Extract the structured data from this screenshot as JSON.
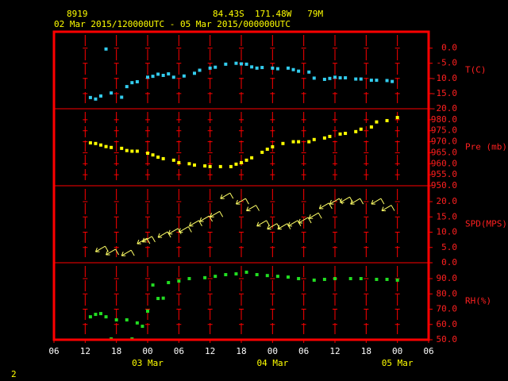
{
  "header": {
    "station": "8919",
    "location": "84.43S  171.48W   79M",
    "period": "02 Mar 2015/120000UTC - 05 Mar 2015/000000UTC"
  },
  "page_number": "2",
  "time_axis": {
    "xlim": [
      "2015-03-02T06",
      "2015-03-05T06"
    ],
    "xticks": [
      {
        "value": "2015-03-02T06",
        "label": "06"
      },
      {
        "value": "2015-03-02T12",
        "label": "12"
      },
      {
        "value": "2015-03-02T18",
        "label": "18"
      },
      {
        "value": "2015-03-03T00",
        "label": "00"
      },
      {
        "value": "2015-03-03T06",
        "label": "06"
      },
      {
        "value": "2015-03-03T12",
        "label": "12"
      },
      {
        "value": "2015-03-03T18",
        "label": "18"
      },
      {
        "value": "2015-03-04T00",
        "label": "00"
      },
      {
        "value": "2015-03-04T06",
        "label": "06"
      },
      {
        "value": "2015-03-04T12",
        "label": "12"
      },
      {
        "value": "2015-03-04T18",
        "label": "18"
      },
      {
        "value": "2015-03-05T00",
        "label": "00"
      },
      {
        "value": "2015-03-05T06",
        "label": "06"
      }
    ],
    "date_labels": [
      {
        "value": "2015-03-03T00",
        "label": "03 Mar"
      },
      {
        "value": "2015-03-04T00",
        "label": "04 Mar"
      },
      {
        "value": "2015-03-05T00",
        "label": "05 Mar"
      }
    ]
  },
  "chart_data": [
    {
      "type": "scatter",
      "ylabel": "T(C)",
      "color": "#33ccee",
      "ylim": [
        -20,
        5.4
      ],
      "yticks": [
        {
          "value": 0,
          "label": "0.0"
        },
        {
          "value": -5,
          "label": "-5.0"
        },
        {
          "value": -10,
          "label": "-10.0"
        },
        {
          "value": -15,
          "label": "-15.0"
        },
        {
          "value": -20,
          "label": "-20.0"
        }
      ],
      "x": [
        "2015-03-02T13",
        "2015-03-02T14",
        "2015-03-02T15",
        "2015-03-02T16",
        "2015-03-02T17",
        "2015-03-02T19",
        "2015-03-02T20",
        "2015-03-02T21",
        "2015-03-02T22",
        "2015-03-03T00",
        "2015-03-03T01",
        "2015-03-03T02",
        "2015-03-03T03",
        "2015-03-03T04",
        "2015-03-03T05",
        "2015-03-03T07",
        "2015-03-03T09",
        "2015-03-03T10",
        "2015-03-03T12",
        "2015-03-03T13",
        "2015-03-03T15",
        "2015-03-03T17",
        "2015-03-03T18",
        "2015-03-03T19",
        "2015-03-03T20",
        "2015-03-03T21",
        "2015-03-03T22",
        "2015-03-04T00",
        "2015-03-04T01",
        "2015-03-04T03",
        "2015-03-04T04",
        "2015-03-04T05",
        "2015-03-04T07",
        "2015-03-04T08",
        "2015-03-04T10",
        "2015-03-04T11",
        "2015-03-04T12",
        "2015-03-04T13",
        "2015-03-04T14",
        "2015-03-04T16",
        "2015-03-04T17",
        "2015-03-04T19",
        "2015-03-04T20",
        "2015-03-04T22",
        "2015-03-04T23"
      ],
      "values": [
        -16.3,
        -16.8,
        -15.8,
        -0.3,
        -14.8,
        -16.2,
        -12.7,
        -11.4,
        -11.1,
        -9.6,
        -9.3,
        -8.6,
        -9.0,
        -8.5,
        -9.6,
        -9.2,
        -8.3,
        -7.3,
        -6.6,
        -6.3,
        -5.3,
        -5.0,
        -5.2,
        -5.3,
        -6.2,
        -6.6,
        -6.4,
        -6.6,
        -6.8,
        -6.6,
        -7.1,
        -7.6,
        -7.9,
        -9.9,
        -10.3,
        -10.0,
        -9.6,
        -9.8,
        -9.8,
        -10.2,
        -10.2,
        -10.6,
        -10.6,
        -10.7,
        -11.0
      ]
    },
    {
      "type": "scatter",
      "ylabel": "Pre (mb)",
      "color": "#ffff00",
      "ylim": [
        950,
        985
      ],
      "yticks": [
        {
          "value": 950,
          "label": "950.0"
        },
        {
          "value": 955,
          "label": "955.0"
        },
        {
          "value": 960,
          "label": "960.0"
        },
        {
          "value": 965,
          "label": "965.0"
        },
        {
          "value": 970,
          "label": "970.0"
        },
        {
          "value": 975,
          "label": "975.0"
        },
        {
          "value": 980,
          "label": "980.0"
        }
      ],
      "x": [
        "2015-03-02T13",
        "2015-03-02T14",
        "2015-03-02T15",
        "2015-03-02T16",
        "2015-03-02T17",
        "2015-03-02T19",
        "2015-03-02T20",
        "2015-03-02T21",
        "2015-03-02T22",
        "2015-03-03T00",
        "2015-03-03T01",
        "2015-03-03T02",
        "2015-03-03T03",
        "2015-03-03T05",
        "2015-03-03T06",
        "2015-03-03T08",
        "2015-03-03T09",
        "2015-03-03T11",
        "2015-03-03T12",
        "2015-03-03T14",
        "2015-03-03T16",
        "2015-03-03T17",
        "2015-03-03T18",
        "2015-03-03T19",
        "2015-03-03T20",
        "2015-03-03T22",
        "2015-03-03T23",
        "2015-03-04T00",
        "2015-03-04T02",
        "2015-03-04T04",
        "2015-03-04T05",
        "2015-03-04T07",
        "2015-03-04T08",
        "2015-03-04T10",
        "2015-03-04T11",
        "2015-03-04T13",
        "2015-03-04T14",
        "2015-03-04T16",
        "2015-03-04T17",
        "2015-03-04T19",
        "2015-03-04T20",
        "2015-03-04T22",
        "2015-03-05T00"
      ],
      "values": [
        969.5,
        969.2,
        968.5,
        967.8,
        967.4,
        967.0,
        966.0,
        965.7,
        965.7,
        964.8,
        964.0,
        963.0,
        962.3,
        961.6,
        960.5,
        960.0,
        959.4,
        959.0,
        958.7,
        958.7,
        958.7,
        959.8,
        960.5,
        961.6,
        962.7,
        965.2,
        966.6,
        967.7,
        969.2,
        970.0,
        970.0,
        970.0,
        971.0,
        971.7,
        972.4,
        973.5,
        973.8,
        974.6,
        975.7,
        976.7,
        979.0,
        979.6,
        981.0
      ]
    },
    {
      "type": "barb",
      "ylabel": "SPD(MPS)",
      "color": "#ffff66",
      "ylim": [
        0,
        25.2
      ],
      "yticks": [
        {
          "value": 0,
          "label": "0.0"
        },
        {
          "value": 5,
          "label": "5.0"
        },
        {
          "value": 10,
          "label": "10.0"
        },
        {
          "value": 15,
          "label": "15.0"
        },
        {
          "value": 20,
          "label": "20.0"
        }
      ],
      "x": [
        "2015-03-02T14",
        "2015-03-02T16",
        "2015-03-02T19",
        "2015-03-02T22",
        "2015-03-02T23",
        "2015-03-03T02",
        "2015-03-03T04",
        "2015-03-03T06",
        "2015-03-03T08",
        "2015-03-03T10",
        "2015-03-03T12",
        "2015-03-03T14",
        "2015-03-03T17",
        "2015-03-03T19",
        "2015-03-03T21",
        "2015-03-03T23",
        "2015-03-04T01",
        "2015-03-04T03",
        "2015-03-04T05",
        "2015-03-04T07",
        "2015-03-04T09",
        "2015-03-04T11",
        "2015-03-04T13",
        "2015-03-04T15",
        "2015-03-04T19",
        "2015-03-04T21"
      ],
      "values": [
        3.6,
        2.6,
        2.3,
        6.2,
        6.8,
        8.3,
        9.4,
        10.0,
        12.0,
        13.5,
        15.0,
        21.0,
        19.2,
        17.0,
        12.0,
        11.0,
        11.0,
        12.0,
        13.0,
        14.5,
        17.7,
        19.2,
        19.7,
        19.2,
        19.2,
        17.0
      ]
    },
    {
      "type": "scatter",
      "ylabel": "RH(%)",
      "color": "#22dd22",
      "ylim": [
        50,
        100.4
      ],
      "yticks": [
        {
          "value": 50,
          "label": "50.0"
        },
        {
          "value": 60,
          "label": "60.0"
        },
        {
          "value": 70,
          "label": "70.0"
        },
        {
          "value": 80,
          "label": "80.0"
        },
        {
          "value": 90,
          "label": "90.0"
        }
      ],
      "x": [
        "2015-03-02T13",
        "2015-03-02T14",
        "2015-03-02T15",
        "2015-03-02T16",
        "2015-03-02T17",
        "2015-03-02T18",
        "2015-03-02T20",
        "2015-03-02T21",
        "2015-03-02T22",
        "2015-03-02T23",
        "2015-03-03T00",
        "2015-03-03T01",
        "2015-03-03T02",
        "2015-03-03T03",
        "2015-03-03T04",
        "2015-03-03T06",
        "2015-03-03T08",
        "2015-03-03T11",
        "2015-03-03T13",
        "2015-03-03T15",
        "2015-03-03T17",
        "2015-03-03T19",
        "2015-03-03T21",
        "2015-03-03T23",
        "2015-03-04T01",
        "2015-03-04T03",
        "2015-03-04T05",
        "2015-03-04T08",
        "2015-03-04T10",
        "2015-03-04T12",
        "2015-03-04T15",
        "2015-03-04T17",
        "2015-03-04T20",
        "2015-03-04T22",
        "2015-03-05T00"
      ],
      "values": [
        65,
        66.6,
        67.1,
        65,
        50.5,
        63,
        63,
        50.5,
        61,
        58.8,
        68.7,
        85.8,
        77,
        77.2,
        87.4,
        88.4,
        90,
        90.6,
        91.5,
        92.6,
        93.1,
        94.2,
        92.6,
        92,
        91.5,
        91,
        90,
        89,
        89.5,
        90,
        90,
        90,
        89.5,
        89.5,
        89
      ]
    }
  ]
}
